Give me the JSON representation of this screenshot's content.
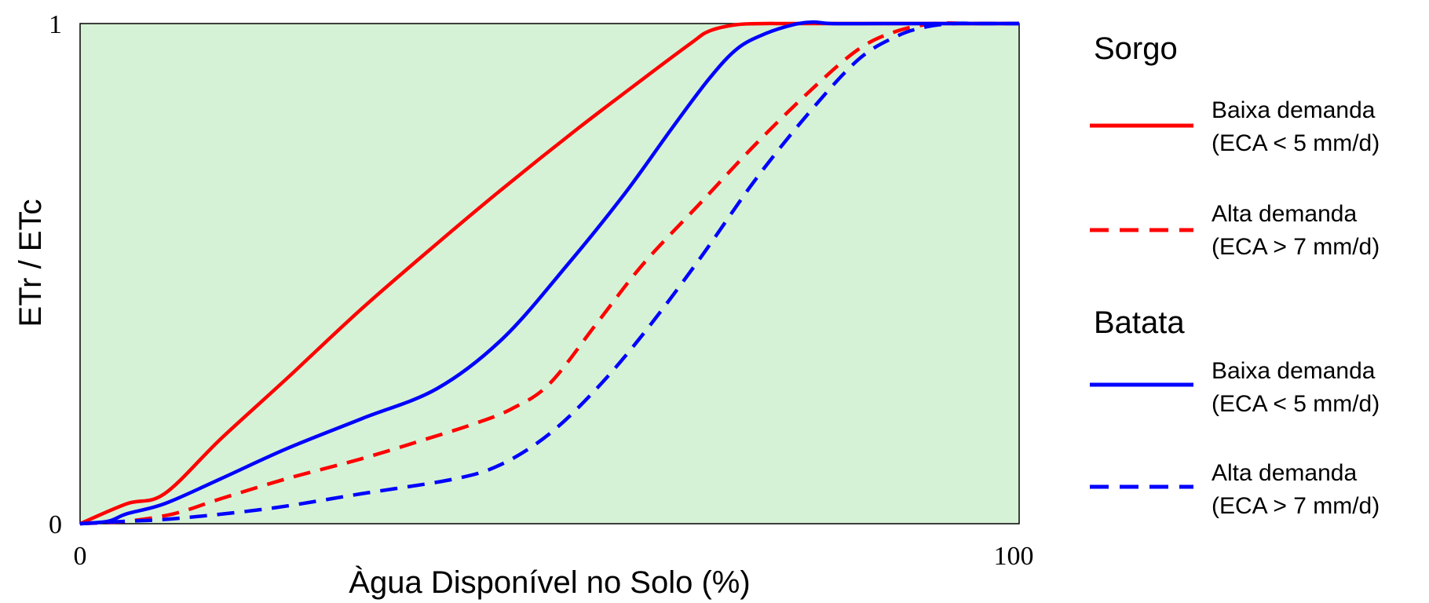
{
  "colors": {
    "plot_background": "#d6f2d6",
    "plot_border": "#000000",
    "sorgo": "#ff0000",
    "batata": "#0000ff"
  },
  "chart_data": {
    "type": "line",
    "title": "",
    "xlabel": "Àgua Disponível no Solo (%)",
    "ylabel": "ETr / ETc",
    "xlim": [
      0,
      100
    ],
    "ylim": [
      0,
      1
    ],
    "x_ticks": [
      {
        "value": 0,
        "label": "0"
      },
      {
        "value": 100,
        "label": "100"
      }
    ],
    "y_ticks": [
      {
        "value": 0,
        "label": "0"
      },
      {
        "value": 1,
        "label": "1"
      }
    ],
    "grid": false,
    "legend_placement": "right",
    "legend_groups": [
      {
        "title": "Sorgo",
        "series": [
          "Sorgo baixa",
          "Sorgo alta"
        ]
      },
      {
        "title": "Batata",
        "series": [
          "Batata baixa",
          "Batata alta"
        ]
      }
    ],
    "series": [
      {
        "id": "sorgo_baixa",
        "group": "Sorgo",
        "name": "Baixa demanda",
        "sublabel": "(ECA < 5 mm/d)",
        "color": "#ff0000",
        "dash": "solid",
        "x": [
          0,
          5,
          9,
          15,
          22,
          30,
          38,
          45,
          53,
          60,
          65,
          67,
          70,
          73,
          75,
          80,
          90,
          100
        ],
        "y": [
          0,
          0.04,
          0.06,
          0.17,
          0.29,
          0.43,
          0.56,
          0.67,
          0.79,
          0.89,
          0.96,
          0.985,
          0.998,
          1.0,
          1.0,
          1.0,
          1.0,
          1.0
        ]
      },
      {
        "id": "sorgo_alta",
        "group": "Sorgo",
        "name": "Alta demanda",
        "sublabel": "(ECA > 7 mm/d)",
        "color": "#ff0000",
        "dash": "dashed",
        "x": [
          0,
          5,
          10,
          15,
          22,
          30,
          37,
          42,
          46,
          50,
          55,
          60,
          66,
          72,
          78,
          83,
          87,
          91,
          95,
          100
        ],
        "y": [
          0,
          0.005,
          0.02,
          0.05,
          0.09,
          0.13,
          0.17,
          0.2,
          0.23,
          0.28,
          0.4,
          0.52,
          0.64,
          0.76,
          0.87,
          0.95,
          0.985,
          1.0,
          1.0,
          1.0
        ]
      },
      {
        "id": "batata_baixa",
        "group": "Batata",
        "name": "Baixa demanda",
        "sublabel": "(ECA < 5 mm/d)",
        "color": "#0000ff",
        "dash": "solid",
        "x": [
          0,
          3,
          5,
          9,
          15,
          22,
          30,
          38,
          45,
          52,
          58,
          63,
          67,
          70,
          73,
          76,
          78,
          80,
          85,
          90,
          100
        ],
        "y": [
          0,
          0.005,
          0.02,
          0.04,
          0.09,
          0.15,
          0.21,
          0.27,
          0.37,
          0.52,
          0.66,
          0.79,
          0.89,
          0.95,
          0.98,
          0.998,
          1.003,
          1.0,
          1.0,
          1.0,
          1.0
        ]
      },
      {
        "id": "batata_alta",
        "group": "Batata",
        "name": "Alta demanda",
        "sublabel": "(ECA > 7 mm/d)",
        "color": "#0000ff",
        "dash": "dashed",
        "x": [
          0,
          5,
          10,
          20,
          30,
          40,
          45,
          50,
          55,
          60,
          66,
          72,
          78,
          83,
          87,
          90,
          93,
          96,
          100
        ],
        "y": [
          0,
          0.005,
          0.01,
          0.03,
          0.06,
          0.09,
          0.12,
          0.18,
          0.27,
          0.38,
          0.53,
          0.69,
          0.83,
          0.93,
          0.975,
          0.993,
          1.0,
          1.0,
          1.0
        ]
      }
    ]
  }
}
